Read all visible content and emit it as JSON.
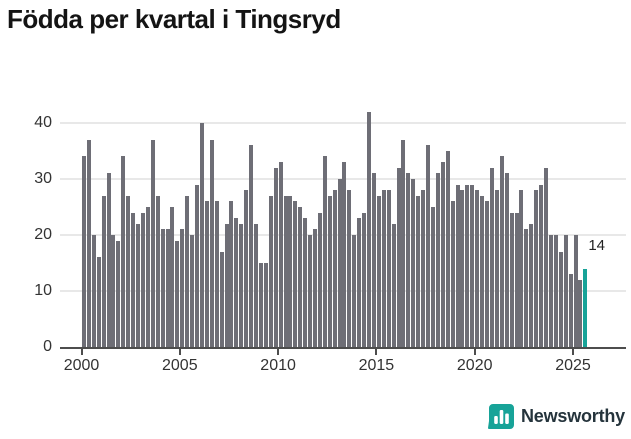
{
  "title": "Födda per kvartal i Tingsryd",
  "annotation": {
    "text": "14"
  },
  "axis": {
    "yticks": [
      "0",
      "10",
      "20",
      "30",
      "40"
    ],
    "xticks": [
      "2000",
      "2005",
      "2010",
      "2015",
      "2020",
      "2025"
    ]
  },
  "logo": {
    "text": "Newsworthy",
    "icon": "newsworthy-speech-bubble-bars-icon"
  },
  "colors": {
    "bar": "#6e6e76",
    "highlight": "#17a398",
    "grid": "#e8e8e8",
    "axis_line": "#4d4d4d",
    "axis_text": "#333333",
    "title_text": "#141414",
    "annotation_text": "#222222",
    "logo_text": "#25343c"
  },
  "chart_data": {
    "type": "bar",
    "title": "Födda per kvartal i Tingsryd",
    "x_unit": "quarter",
    "x_start": "2000-Q1",
    "x_end": "2025-Q3",
    "xlabel": "",
    "ylabel": "",
    "ylim": [
      0,
      43
    ],
    "yticks": [
      0,
      10,
      20,
      30,
      40
    ],
    "xticks_years": [
      2000,
      2005,
      2010,
      2015,
      2020,
      2025
    ],
    "grid": true,
    "legend": "none",
    "highlight_last": true,
    "highlight_label": "14",
    "values": [
      34,
      37,
      20,
      16,
      27,
      31,
      20,
      19,
      34,
      27,
      24,
      22,
      24,
      25,
      37,
      27,
      21,
      21,
      25,
      19,
      21,
      27,
      20,
      29,
      40,
      26,
      37,
      26,
      17,
      22,
      26,
      23,
      22,
      28,
      36,
      22,
      15,
      15,
      27,
      32,
      33,
      27,
      27,
      26,
      25,
      23,
      20,
      21,
      24,
      34,
      27,
      28,
      30,
      33,
      28,
      20,
      23,
      24,
      42,
      31,
      27,
      28,
      28,
      22,
      32,
      37,
      31,
      30,
      27,
      28,
      36,
      25,
      31,
      33,
      35,
      26,
      29,
      28,
      29,
      29,
      28,
      27,
      26,
      32,
      28,
      34,
      31,
      24,
      24,
      28,
      21,
      22,
      28,
      29,
      32,
      20,
      20,
      17,
      20,
      13,
      20,
      12,
      14
    ]
  }
}
